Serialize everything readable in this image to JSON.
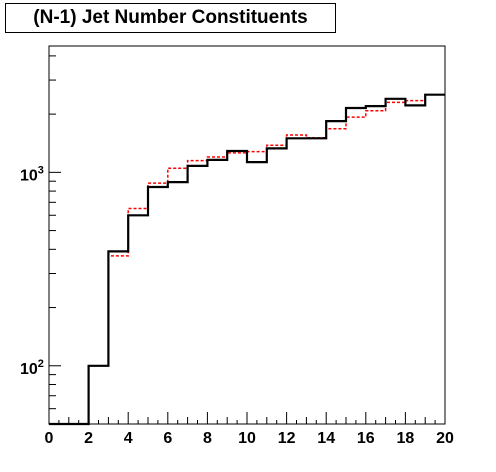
{
  "chart_data": {
    "type": "histogram-step",
    "title": "(N-1) Jet Number Constituents",
    "xlabel": "",
    "ylabel": "",
    "xlim": [
      0,
      20
    ],
    "ylim": [
      50,
      4500
    ],
    "yscale": "log",
    "bin_edges": [
      0,
      1,
      2,
      3,
      4,
      5,
      6,
      7,
      8,
      9,
      10,
      11,
      12,
      13,
      14,
      15,
      16,
      17,
      18,
      19,
      20
    ],
    "x_ticks": [
      0,
      2,
      4,
      6,
      8,
      10,
      12,
      14,
      16,
      18,
      20
    ],
    "y_ticks": [
      {
        "value": 100,
        "base": "10",
        "exp": "2"
      },
      {
        "value": 1000,
        "base": "10",
        "exp": "3"
      }
    ],
    "series": [
      {
        "color": "#000000",
        "style": "solid",
        "values": [
          50,
          50,
          100,
          390,
          600,
          840,
          890,
          1080,
          1160,
          1290,
          1130,
          1330,
          1500,
          1500,
          1840,
          2150,
          2200,
          2400,
          2220,
          2520
        ]
      },
      {
        "color": "#ff0000",
        "style": "dashed",
        "values": [
          50,
          50,
          100,
          370,
          650,
          880,
          1050,
          1150,
          1200,
          1260,
          1280,
          1380,
          1560,
          1510,
          1680,
          1930,
          2080,
          2300,
          2350,
          2520
        ]
      }
    ]
  }
}
